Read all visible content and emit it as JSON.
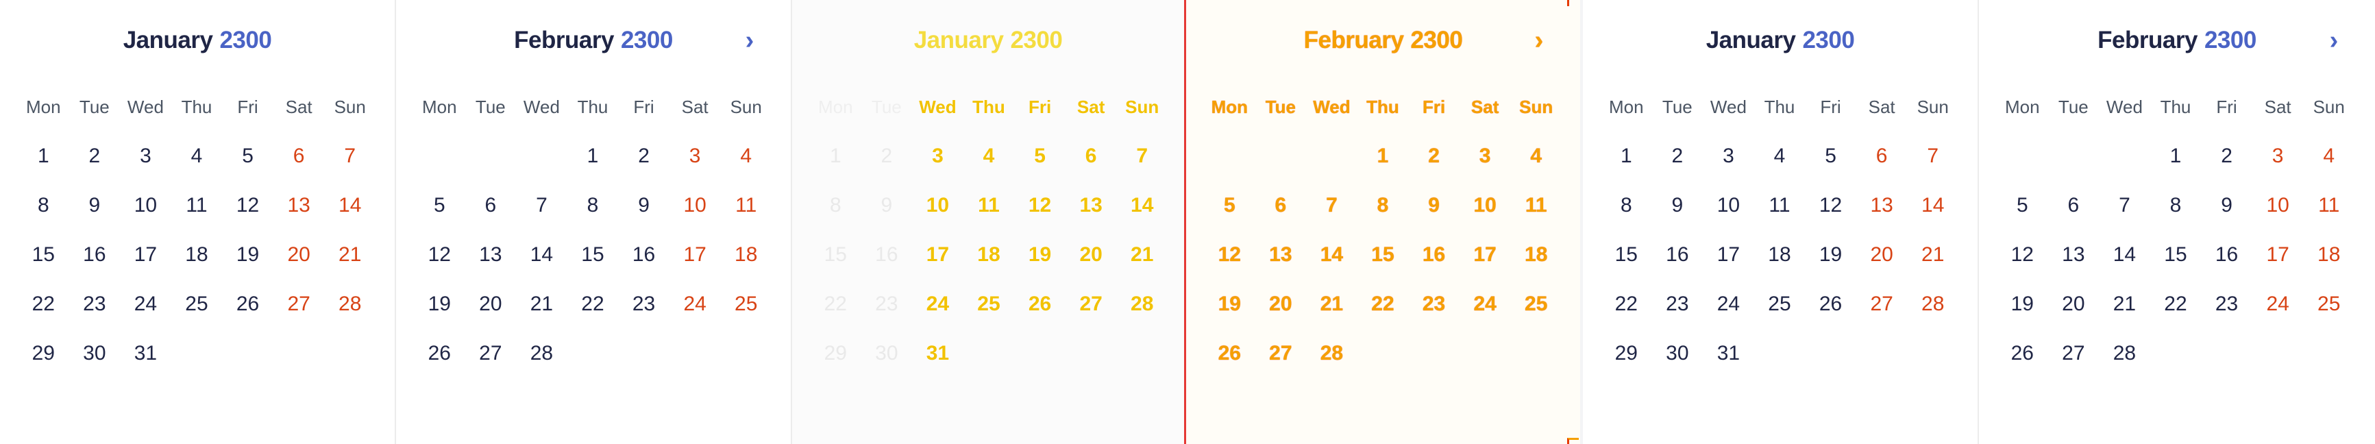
{
  "weekday_labels": [
    "Mon",
    "Tue",
    "Wed",
    "Thu",
    "Fri",
    "Sat",
    "Sun"
  ],
  "next_icon": "›",
  "panels": [
    {
      "month": "January",
      "year": "2300"
    },
    {
      "month": "February",
      "year": "2300"
    },
    {
      "month": "January",
      "year": "2300"
    },
    {
      "month": "February",
      "year": "2300"
    },
    {
      "month": "January",
      "year": "2300"
    },
    {
      "month": "February",
      "year": "2300"
    }
  ],
  "january_days": [
    [
      "1",
      "2",
      "3",
      "4",
      "5",
      "6",
      "7"
    ],
    [
      "8",
      "9",
      "10",
      "11",
      "12",
      "13",
      "14"
    ],
    [
      "15",
      "16",
      "17",
      "18",
      "19",
      "20",
      "21"
    ],
    [
      "22",
      "23",
      "24",
      "25",
      "26",
      "27",
      "28"
    ],
    [
      "29",
      "30",
      "31",
      "",
      "",
      "",
      ""
    ]
  ],
  "february_days": [
    [
      "",
      "",
      "",
      "1",
      "2",
      "3",
      "4"
    ],
    [
      "5",
      "6",
      "7",
      "8",
      "9",
      "10",
      "11"
    ],
    [
      "12",
      "13",
      "14",
      "15",
      "16",
      "17",
      "18"
    ],
    [
      "19",
      "20",
      "21",
      "22",
      "23",
      "24",
      "25"
    ],
    [
      "26",
      "27",
      "28",
      "",
      "",
      "",
      ""
    ]
  ],
  "colors": {
    "accent_year": "#4a63c5",
    "weekend": "#d84315",
    "day_text": "#1f2545",
    "highlight_yellow": "#f2c200",
    "highlight_orange": "#f5a000",
    "divider_red": "#e53935"
  }
}
